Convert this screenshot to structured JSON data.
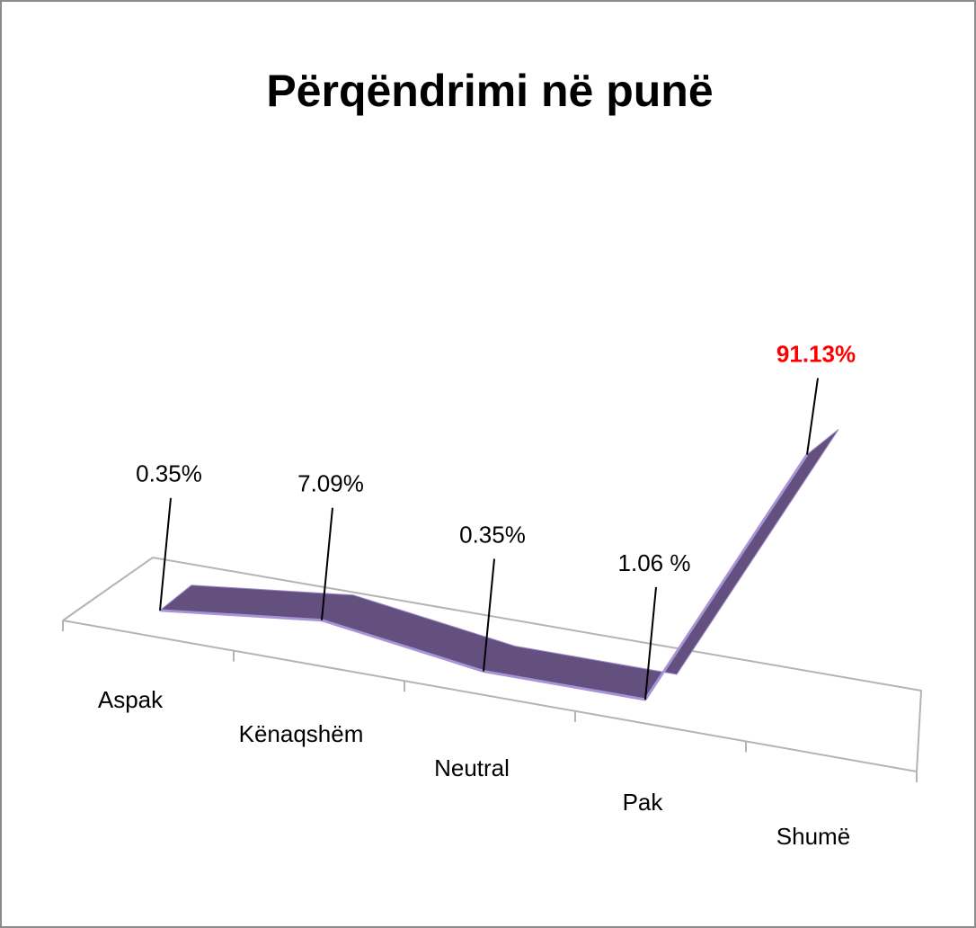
{
  "chart_data": {
    "type": "line",
    "title": "Përqëndrimi në punë",
    "categories": [
      "Aspak",
      "Kënaqshëm",
      "Neutral",
      "Pak",
      "Shumë"
    ],
    "values": [
      0.35,
      7.09,
      0.35,
      1.06,
      91.13
    ],
    "value_labels": [
      "0.35%",
      "7.09%",
      "0.35%",
      "1.06 %",
      "91.13%"
    ],
    "value_label_colors": [
      "#000000",
      "#000000",
      "#000000",
      "#000000",
      "#ff0000"
    ],
    "color": "#64507f"
  }
}
